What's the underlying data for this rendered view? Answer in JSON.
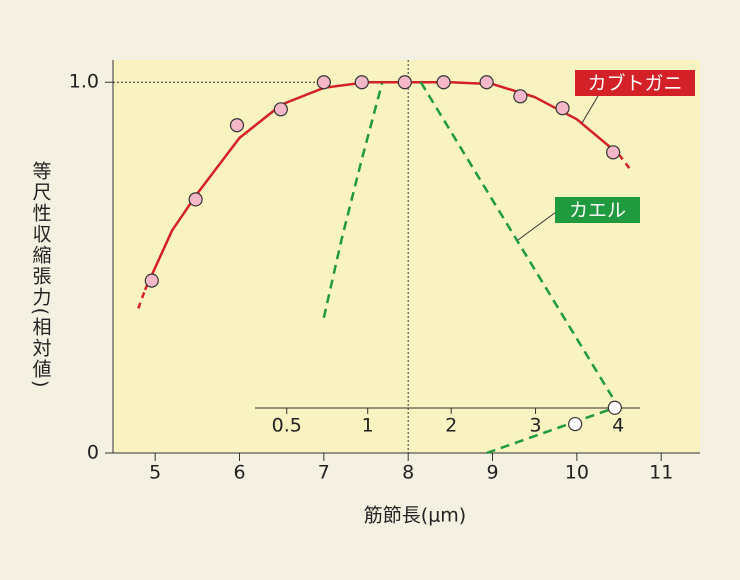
{
  "chart_data": {
    "type": "scatter",
    "x_label": "筋節長(μm)",
    "y_label": "等尺性収縮張力(相対値)",
    "xlim": [
      4.5,
      11.46
    ],
    "ylim": [
      0,
      1.06
    ],
    "xticks": [
      5,
      6,
      7,
      8,
      9,
      10,
      11
    ],
    "yticks": [
      0,
      {
        "value": 1,
        "label": "1.0"
      }
    ],
    "x2ticks": [
      {
        "value": 6.56,
        "label": "0.5"
      },
      {
        "value": 7.52,
        "label": "1"
      },
      {
        "value": 8.51,
        "label": "2"
      },
      {
        "value": 9.51,
        "label": "3"
      },
      {
        "value": 10.49,
        "label": "4"
      }
    ],
    "reference_lines": [
      {
        "axis": "y",
        "value": 1,
        "end": 7
      },
      {
        "axis": "x",
        "value": 8
      }
    ],
    "series": [
      {
        "name": "カブトガニ",
        "color": "#d42027",
        "point_fill": "#f4b8c8",
        "x": [
          4.96,
          5.48,
          5.97,
          6.49,
          7.0,
          7.45,
          7.96,
          8.42,
          8.93,
          9.33,
          9.83,
          10.43
        ],
        "values": [
          0.465,
          0.684,
          0.884,
          0.927,
          1.0,
          1.0,
          1.0,
          1.0,
          1.0,
          0.962,
          0.93,
          0.811
        ],
        "curve": {
          "x": [
            4.8,
            4.88,
            5.2,
            5.5,
            6.0,
            6.5,
            7.0,
            7.5,
            8.0,
            8.5,
            9.0,
            9.5,
            10.0,
            10.5,
            10.65
          ],
          "values": [
            0.39,
            0.44,
            0.6,
            0.7,
            0.85,
            0.94,
            0.985,
            1.0,
            1.0,
            1.0,
            0.995,
            0.96,
            0.9,
            0.805,
            0.76
          ],
          "dashed_ends": true,
          "dashed": false
        }
      },
      {
        "name": "カエル",
        "color": "#1f9a3e",
        "point_fill": "#ffffff",
        "x": [
          9.98,
          10.45
        ],
        "values": [
          0.078,
          0.122
        ],
        "curve": {
          "x": [
            7.0,
            7.21,
            7.45,
            7.69,
            null,
            8.15,
            10.42,
            null,
            8.93,
            10.45
          ],
          "values": [
            0.365,
            0.576,
            0.792,
            0.997,
            null,
            1.0,
            0.151,
            null,
            0,
            0.122
          ],
          "dashed_ends": false,
          "dashed": true
        }
      }
    ]
  }
}
